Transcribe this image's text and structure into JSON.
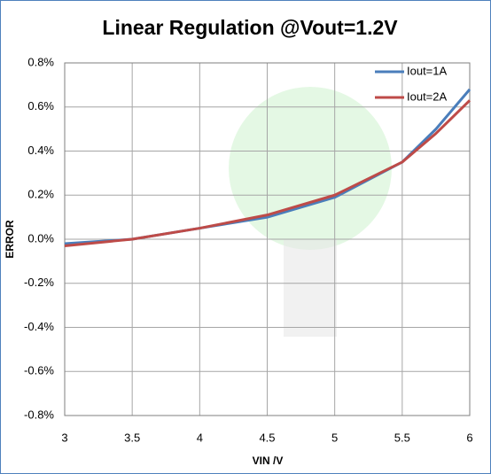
{
  "chart_data": {
    "type": "line",
    "title": "Linear Regulation  @Vout=1.2V",
    "x_label": "VIN /V",
    "y_label": "ERROR",
    "x": [
      3,
      3.5,
      4,
      4.5,
      5,
      5.5,
      5.75,
      6
    ],
    "series": [
      {
        "name": "Iout=1A",
        "color": "#4a7ebb",
        "values": [
          -0.02,
          0,
          0.05,
          0.1,
          0.19,
          0.35,
          0.5,
          0.68
        ]
      },
      {
        "name": "Iout=2A",
        "color": "#be4b48",
        "values": [
          -0.03,
          0,
          0.05,
          0.11,
          0.2,
          0.35,
          0.48,
          0.63
        ]
      }
    ],
    "xlim": [
      3,
      6
    ],
    "xticks": [
      3,
      3.5,
      4,
      4.5,
      5,
      5.5,
      6
    ],
    "ylim": [
      -0.8,
      0.8
    ],
    "yticks": [
      {
        "value": -0.8,
        "label": "-0.8%"
      },
      {
        "value": -0.6,
        "label": "-0.6%"
      },
      {
        "value": -0.4,
        "label": "-0.4%"
      },
      {
        "value": -0.2,
        "label": "-0.2%"
      },
      {
        "value": 0,
        "label": "0.0%"
      },
      {
        "value": 0.2,
        "label": "0.2%"
      },
      {
        "value": 0.4,
        "label": "0.4%"
      },
      {
        "value": 0.6,
        "label": "0.6%"
      },
      {
        "value": 0.8,
        "label": "0.8%"
      }
    ],
    "grid": true,
    "legend": "top-right"
  }
}
